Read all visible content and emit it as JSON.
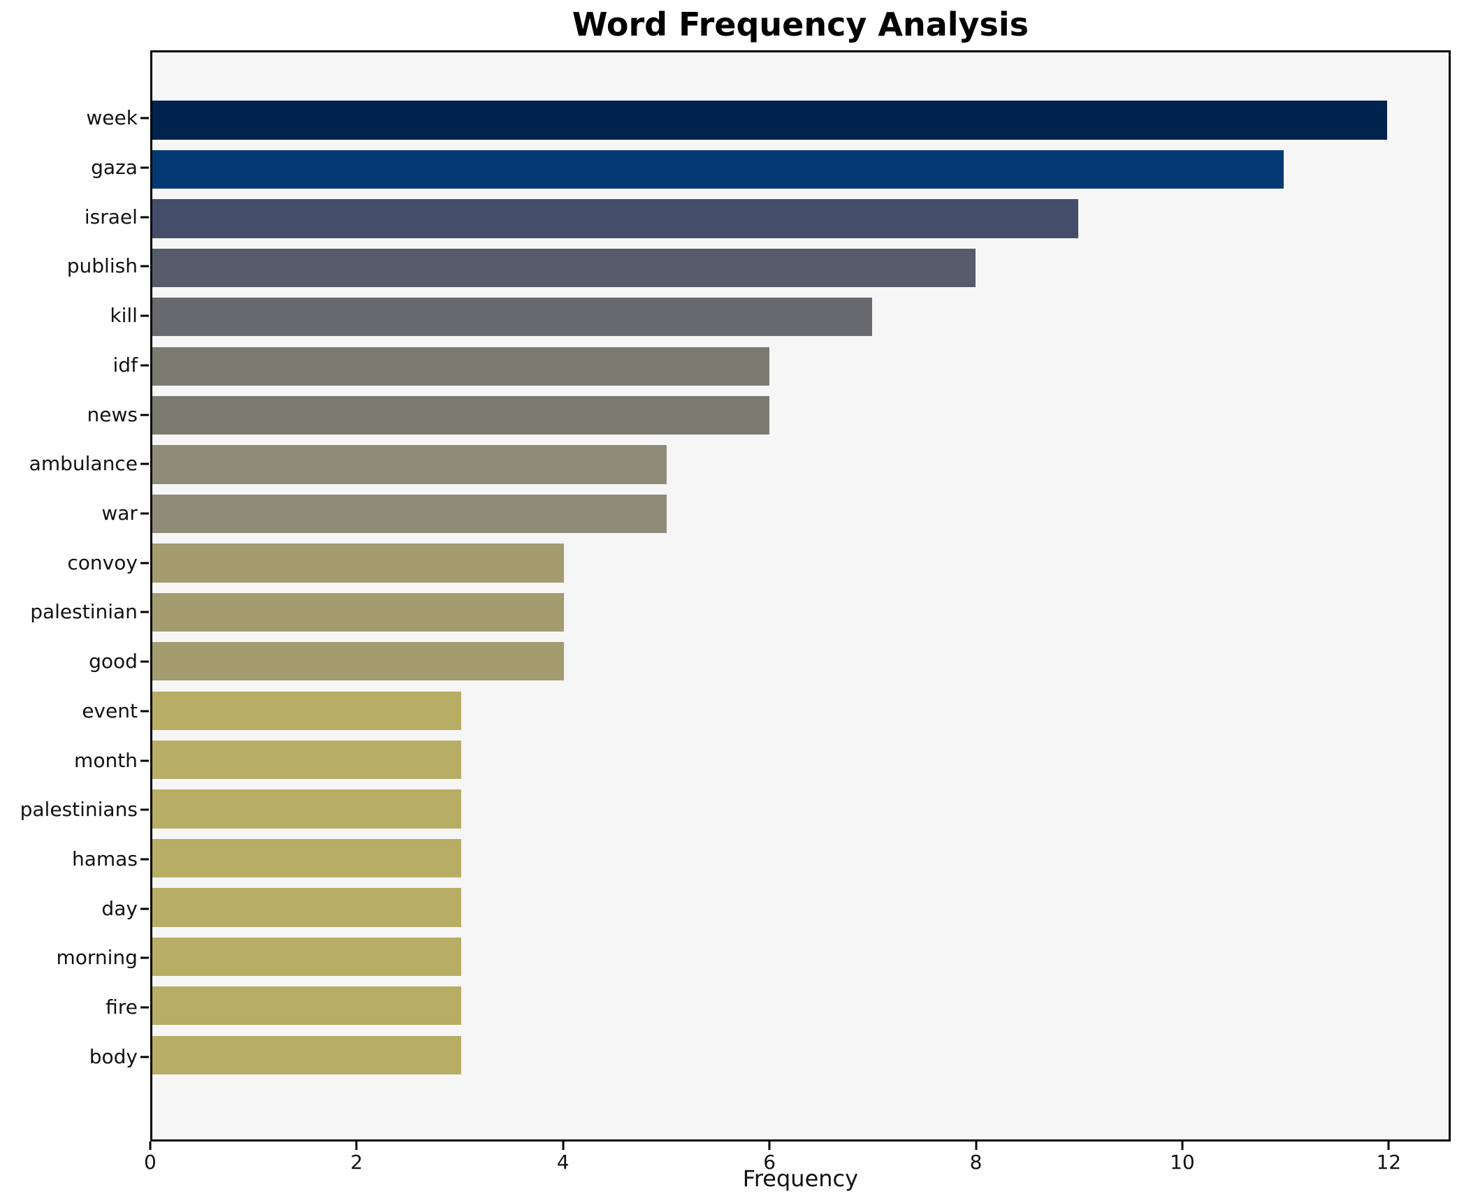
{
  "figure": {
    "background": "#ffffff",
    "plot_background": "#f6f6f7",
    "spine_color": "#000000",
    "text_color": "#111111"
  },
  "chart_data": {
    "type": "bar",
    "orientation": "horizontal",
    "title": "Word Frequency Analysis",
    "xlabel": "Frequency",
    "ylabel": "",
    "grid": false,
    "legend": "none",
    "xlim": [
      0,
      12.6
    ],
    "xticks": [
      "0",
      "2",
      "4",
      "6",
      "8",
      "10",
      "12"
    ],
    "categories": [
      "week",
      "gaza",
      "israel",
      "publish",
      "kill",
      "idf",
      "news",
      "ambulance",
      "war",
      "convoy",
      "palestinian",
      "good",
      "event",
      "month",
      "palestinians",
      "hamas",
      "day",
      "morning",
      "fire",
      "body"
    ],
    "values": [
      12,
      11,
      9,
      8,
      7,
      6,
      6,
      5,
      5,
      4,
      4,
      4,
      3,
      3,
      3,
      3,
      3,
      3,
      3,
      3
    ],
    "bar_colors": [
      "#00234d",
      "#043a74",
      "#444e6b",
      "#565c6c",
      "#696a70",
      "#7b7a71",
      "#7b7a71",
      "#908b79",
      "#908b79",
      "#a39c6f",
      "#a39c6f",
      "#a39c6f",
      "#b8ad64",
      "#b8ad64",
      "#b8ad64",
      "#b8ad64",
      "#b8ad64",
      "#b8ad64",
      "#b8ad64",
      "#b8ad64"
    ]
  }
}
